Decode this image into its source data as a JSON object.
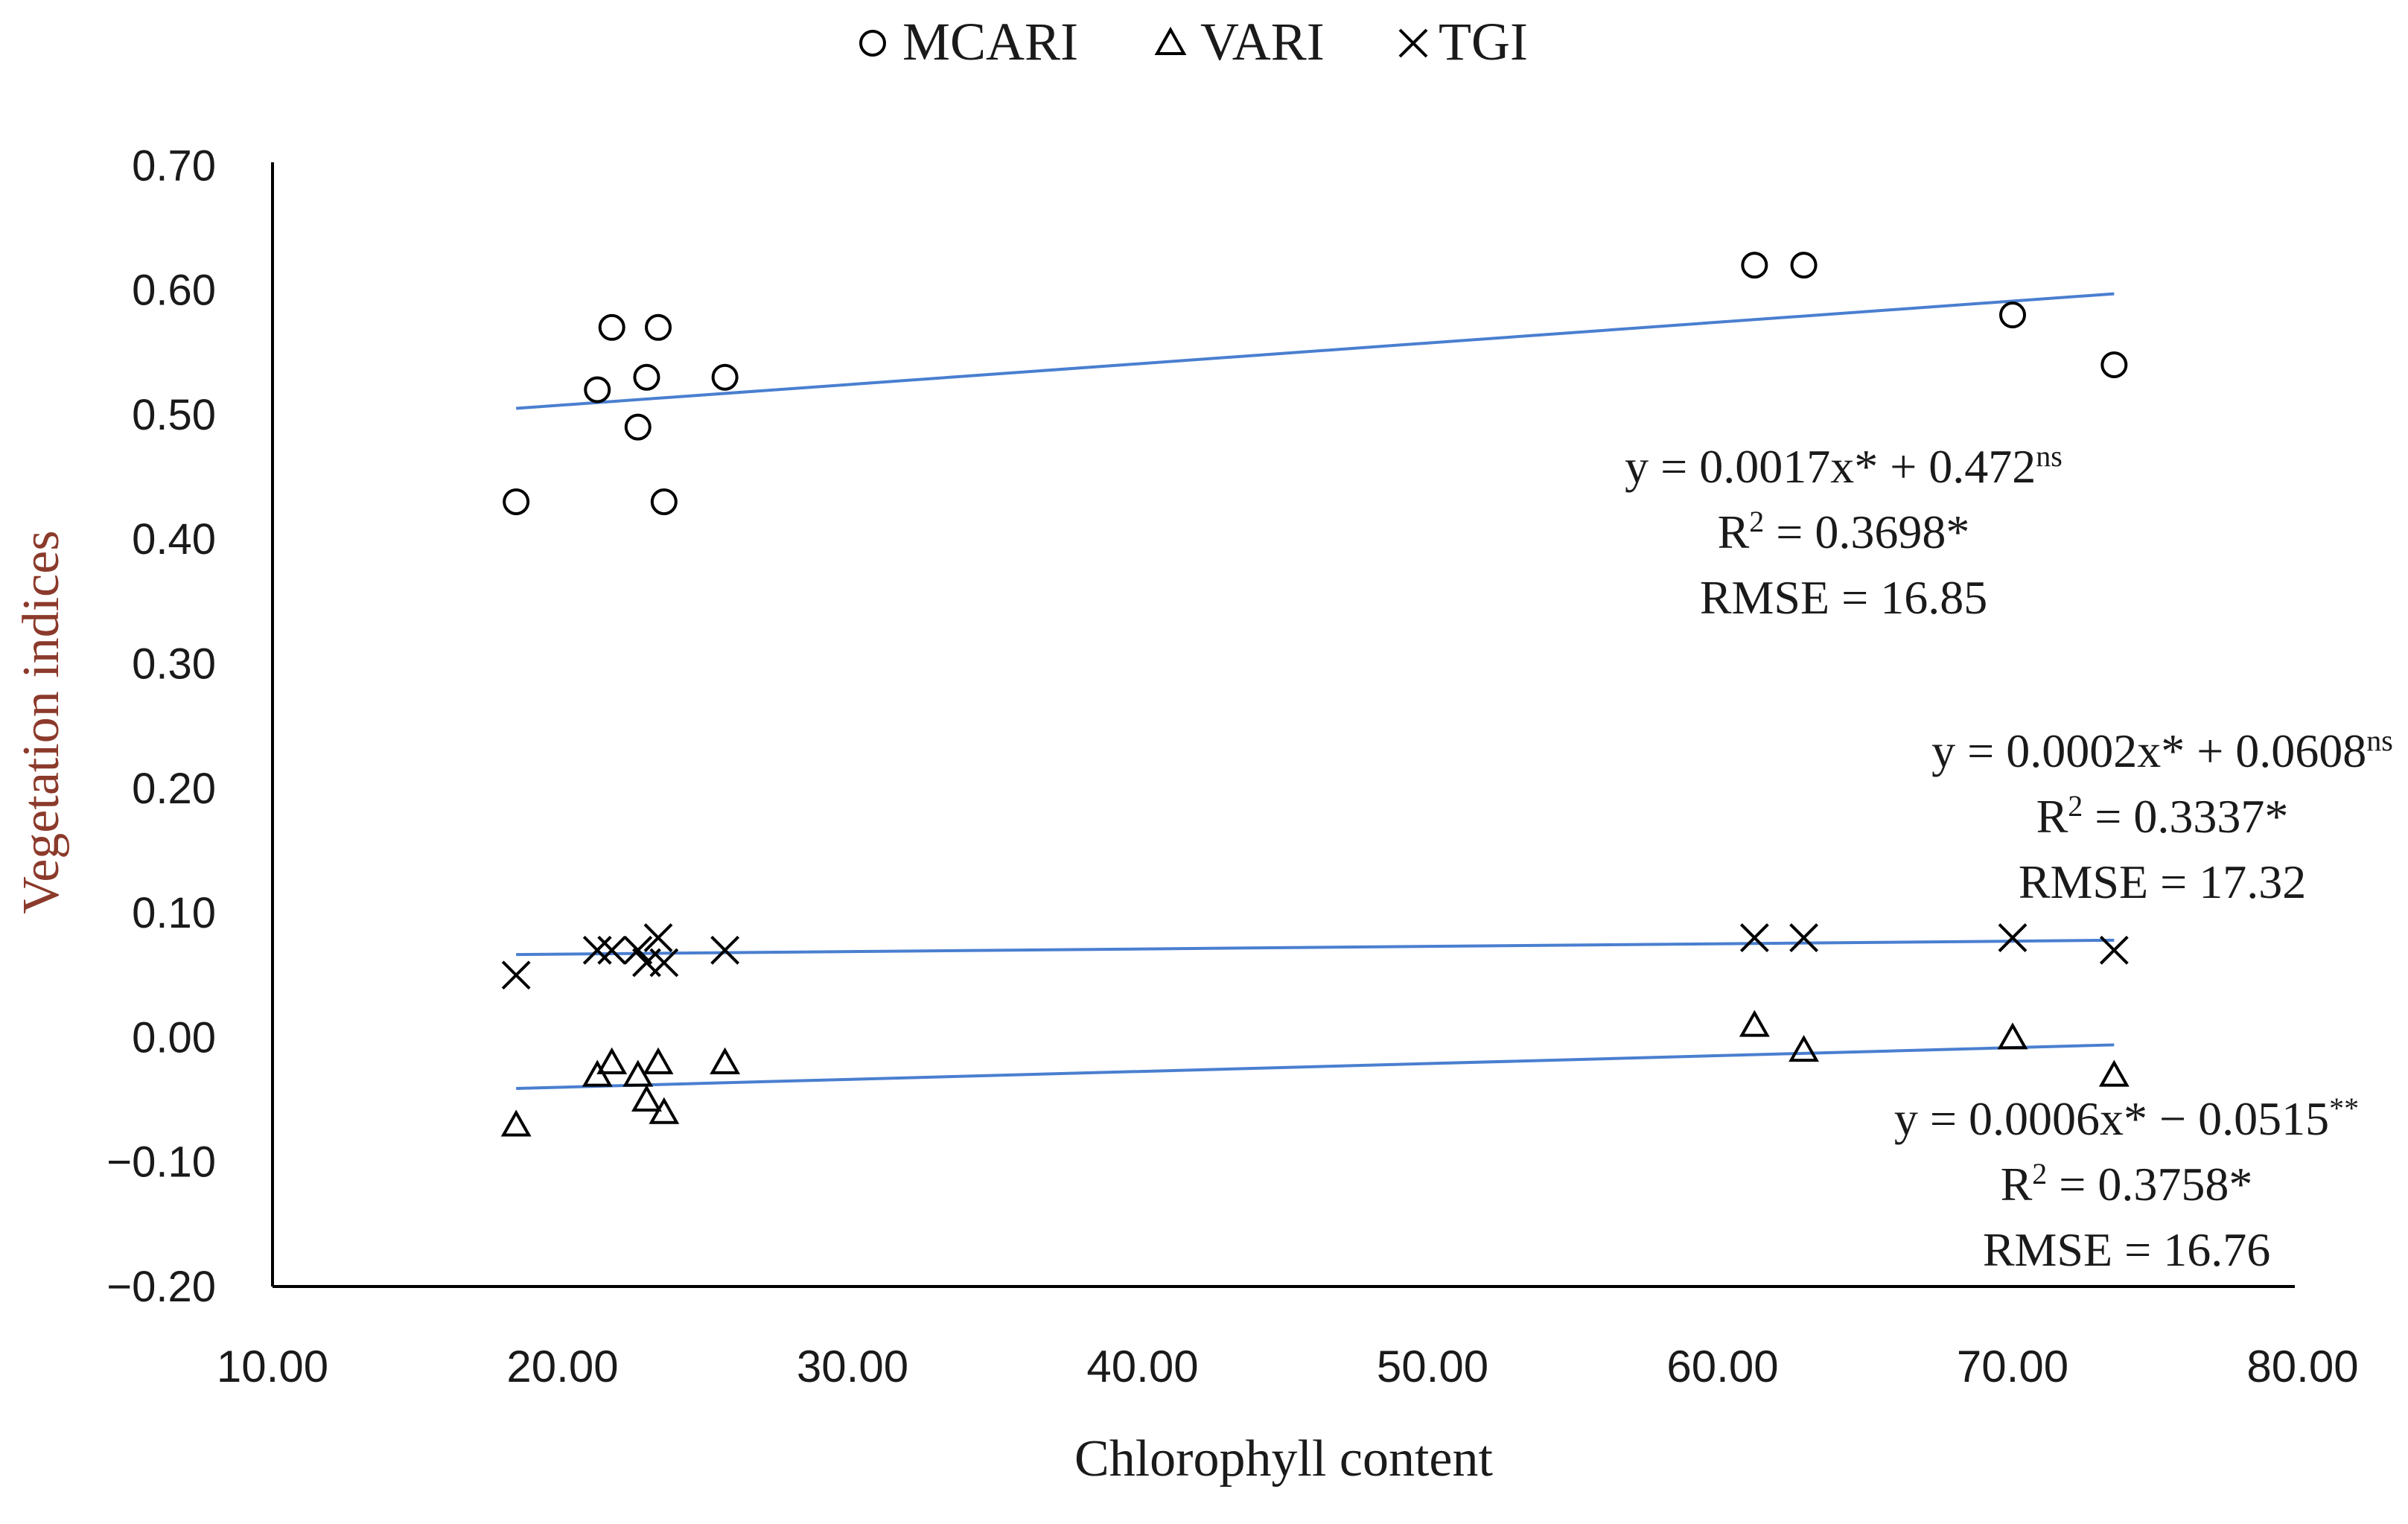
{
  "chart_data": {
    "type": "scatter",
    "xlabel": "Chlorophyll content",
    "ylabel": "Vegetation indices",
    "xlim": [
      10,
      80
    ],
    "ylim": [
      -0.2,
      0.7
    ],
    "x_ticks": [
      "10.00",
      "20.00",
      "30.00",
      "40.00",
      "50.00",
      "60.00",
      "70.00",
      "80.00"
    ],
    "x_tick_values": [
      10,
      20,
      30,
      40,
      50,
      60,
      70,
      80
    ],
    "y_ticks": [
      "0.70",
      "0.60",
      "0.50",
      "0.40",
      "0.30",
      "0.20",
      "0.10",
      "0.00",
      "−0.10",
      "−0.20"
    ],
    "y_tick_values": [
      0.7,
      0.6,
      0.5,
      0.4,
      0.3,
      0.2,
      0.1,
      0.0,
      -0.1,
      -0.2
    ],
    "trendline_color": "#4a7fd0",
    "marker_color": "#000000",
    "series": [
      {
        "name": "MCARI",
        "marker": "circle",
        "x": [
          18.4,
          21.2,
          21.7,
          22.6,
          22.9,
          23.3,
          23.5,
          25.6,
          61.1,
          62.8,
          70.0,
          73.5
        ],
        "y": [
          0.43,
          0.52,
          0.57,
          0.49,
          0.53,
          0.57,
          0.43,
          0.53,
          0.62,
          0.62,
          0.58,
          0.54
        ],
        "fit": {
          "x": [
            18.4,
            73.5
          ],
          "y": [
            0.505,
            0.597
          ]
        },
        "annotation": {
          "eq_main": "y = 0.0017x* + 0.472",
          "eq_sup": "ns",
          "r2_pre": "R",
          "r2_sup": "2",
          "r2_post": " = 0.3698*",
          "rmse": "RMSE = 16.85"
        }
      },
      {
        "name": "VARI",
        "marker": "triangle",
        "x": [
          18.4,
          21.2,
          21.7,
          22.6,
          22.9,
          23.3,
          23.5,
          25.6,
          61.1,
          62.8,
          70.0,
          73.5
        ],
        "y": [
          -0.07,
          -0.03,
          -0.02,
          -0.03,
          -0.05,
          -0.02,
          -0.06,
          -0.02,
          0.01,
          -0.01,
          0.0,
          -0.03
        ],
        "fit": {
          "x": [
            18.4,
            73.5
          ],
          "y": [
            -0.041,
            -0.006
          ]
        },
        "annotation": {
          "eq_main": "y = 0.0006x* − 0.0515",
          "eq_sup": "**",
          "r2_pre": "R",
          "r2_sup": "2",
          "r2_post": " = 0.3758*",
          "rmse": "RMSE = 16.76"
        }
      },
      {
        "name": "TGI",
        "marker": "cross",
        "x": [
          18.4,
          21.2,
          21.7,
          22.6,
          22.9,
          23.3,
          23.5,
          25.6,
          61.1,
          62.8,
          70.0,
          73.5
        ],
        "y": [
          0.05,
          0.07,
          0.07,
          0.07,
          0.06,
          0.08,
          0.06,
          0.07,
          0.08,
          0.08,
          0.08,
          0.07
        ],
        "fit": {
          "x": [
            18.4,
            73.5
          ],
          "y": [
            0.0665,
            0.078
          ]
        },
        "annotation": {
          "eq_main": "y = 0.0002x* + 0.0608",
          "eq_sup": "ns",
          "r2_pre": "R",
          "r2_sup": "2",
          "r2_post": " = 0.3337*",
          "rmse": "RMSE = 17.32"
        }
      }
    ],
    "legend": {
      "placement": "top-center",
      "entries": [
        "MCARI",
        "VARI",
        "TGI"
      ]
    }
  }
}
